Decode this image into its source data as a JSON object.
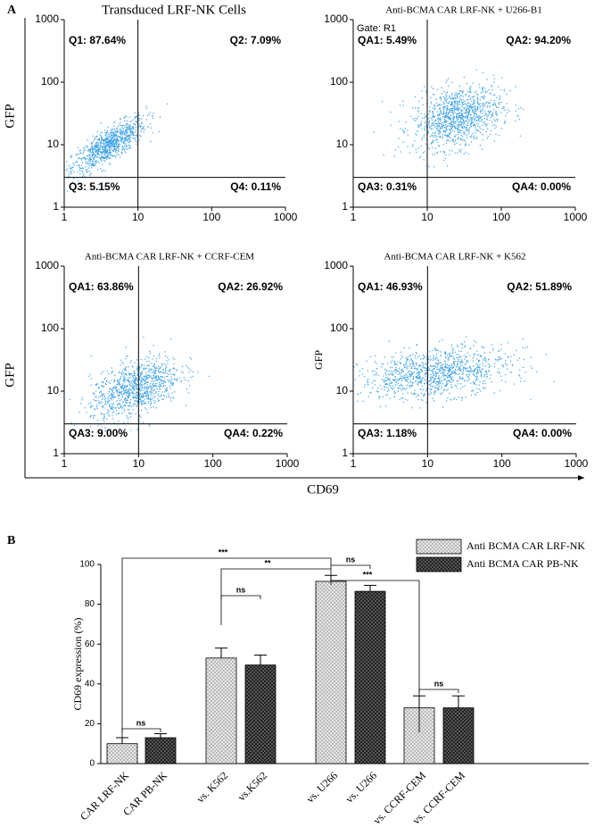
{
  "panel_labels": [
    "A",
    "B"
  ],
  "shared_axes": {
    "ylabel": "GFP",
    "xlabel": "CD69"
  },
  "chart_data": [
    {
      "type": "scatter",
      "title": "Transduced LRF-NK Cells",
      "color": "#3aa0e8",
      "log_x": true,
      "log_y": true,
      "xlim": [
        1,
        1000
      ],
      "ylim": [
        1,
        1000
      ],
      "xticks": [
        1,
        10,
        100,
        1000
      ],
      "yticks": [
        1,
        10,
        100,
        1000
      ],
      "gate": {
        "x": 10,
        "y": 3
      },
      "quadrants": [
        "Q1: 87.64%",
        "Q2: 7.09%",
        "Q3: 5.15%",
        "Q4: 0.11%"
      ]
    },
    {
      "type": "scatter",
      "title": "Anti-BCMA CAR LRF-NK + U266-B1",
      "annotation": "Gate: R1",
      "color": "#3aa0e8",
      "log_x": true,
      "log_y": true,
      "xlim": [
        1,
        1000
      ],
      "ylim": [
        1,
        1000
      ],
      "xticks": [
        1,
        10,
        100,
        1000
      ],
      "yticks": [
        1,
        10,
        100,
        1000
      ],
      "gate": {
        "x": 10,
        "y": 3
      },
      "quadrants": [
        "QA1: 5.49%",
        "QA2: 94.20%",
        "QA3: 0.31%",
        "QA4: 0.00%"
      ]
    },
    {
      "type": "scatter",
      "title": "Anti-BCMA CAR LRF-NK + CCRF-CEM",
      "color": "#3aa0e8",
      "log_x": true,
      "log_y": true,
      "xlim": [
        1,
        1000
      ],
      "ylim": [
        1,
        1000
      ],
      "xticks": [
        1,
        10,
        100,
        1000
      ],
      "yticks": [
        1,
        10,
        100,
        1000
      ],
      "gate": {
        "x": 10,
        "y": 3
      },
      "quadrants": [
        "QA1: 63.86%",
        "QA2: 26.92%",
        "QA3: 9.00%",
        "QA4: 0.22%"
      ]
    },
    {
      "type": "scatter",
      "title": "Anti-BCMA CAR LRF-NK + K562",
      "ylabel": "GFP",
      "color": "#3aa0e8",
      "log_x": true,
      "log_y": true,
      "xlim": [
        1,
        1000
      ],
      "ylim": [
        1,
        1000
      ],
      "xticks": [
        1,
        10,
        100,
        1000
      ],
      "yticks": [
        1,
        10,
        100,
        1000
      ],
      "gate": {
        "x": 10,
        "y": 3
      },
      "quadrants": [
        "QA1: 46.93%",
        "QA2: 51.89%",
        "QA3: 1.18%",
        "QA4: 0.00%"
      ]
    },
    {
      "type": "bar",
      "ylabel": "CD69 expression (%)",
      "categories": [
        "CAR LRF-NK",
        "CAR PB-NK",
        "vs. K562",
        "vs.K562",
        "vs. U266",
        "vs. U266",
        "vs. CCRF-CEM",
        "vs. CCRF-CEM"
      ],
      "values": [
        10,
        13,
        53,
        49.5,
        91.5,
        86.5,
        28,
        28
      ],
      "errors": [
        3,
        2,
        5,
        5,
        3,
        3,
        6,
        6
      ],
      "series": [
        {
          "name": "Anti BCMA CAR LRF-NK",
          "color": "#d9d9d9"
        },
        {
          "name": "Anti BCMA CAR PB-NK",
          "color": "#333333"
        }
      ],
      "ylim": [
        0,
        100
      ],
      "yticks": [
        0,
        20,
        40,
        60,
        80,
        100
      ],
      "significance": [
        "***",
        "**",
        "ns",
        "***",
        "ns",
        "ns",
        "ns"
      ]
    }
  ]
}
